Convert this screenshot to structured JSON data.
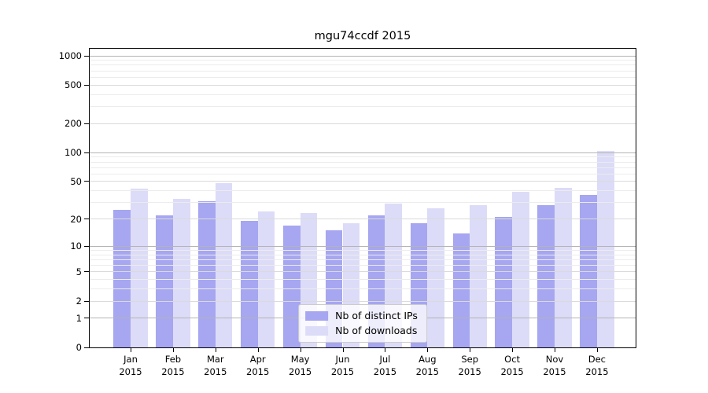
{
  "chart_data": {
    "type": "bar",
    "title": "mgu74ccdf 2015",
    "categories": [
      "Jan",
      "Feb",
      "Mar",
      "Apr",
      "May",
      "Jun",
      "Jul",
      "Aug",
      "Sep",
      "Oct",
      "Nov",
      "Dec"
    ],
    "x_year_label": "2015",
    "series": [
      {
        "name": "Nb of distinct IPs",
        "color": "#a6a6f1",
        "values": [
          25,
          22,
          31,
          19,
          17,
          15,
          22,
          18,
          14,
          21,
          28,
          36
        ]
      },
      {
        "name": "Nb of downloads",
        "color": "#dcdcf8",
        "values": [
          42,
          33,
          48,
          24,
          23,
          18,
          29,
          26,
          28,
          39,
          43,
          105
        ]
      }
    ],
    "y_axis": {
      "scale": "log1p",
      "ticks": [
        0,
        1,
        2,
        5,
        10,
        20,
        50,
        100,
        200,
        500,
        1000
      ],
      "minor_gridlines": [
        3,
        4,
        6,
        7,
        8,
        9,
        30,
        40,
        60,
        70,
        80,
        90,
        300,
        400,
        600,
        700,
        800,
        900
      ],
      "max": 1000
    },
    "legend": {
      "position": "lower center"
    },
    "grid": {
      "major_color": "#b4b4b4",
      "mid_color": "#dadada",
      "minor_color": "#ececec"
    },
    "frame_color": "#000000",
    "background_color": "#ffffff"
  }
}
